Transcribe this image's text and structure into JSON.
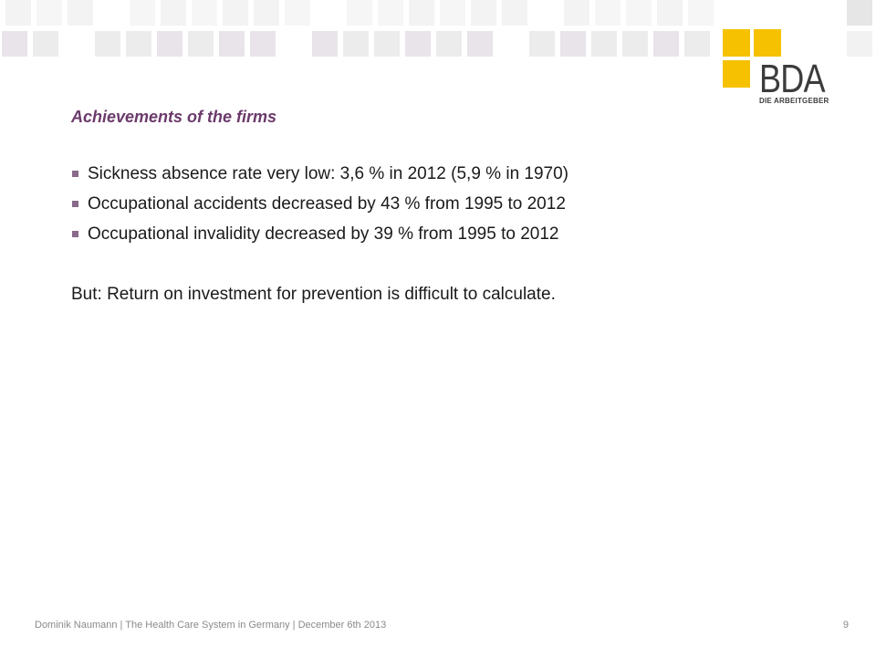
{
  "logo": {
    "letters": "BDA",
    "tagline": "DIE ARBEITGEBER"
  },
  "slide": {
    "title": "Achievements of the firms",
    "bullets": [
      "Sickness absence rate very low: 3,6 % in 2012 (5,9 % in 1970)",
      "Occupational accidents decreased by 43 % from 1995 to 2012",
      "Occupational invalidity decreased by 39 % from 1995 to 2012"
    ],
    "note": "But: Return on investment for prevention is difficult to calculate."
  },
  "footer": {
    "text": "Dominik Naumann | The Health Care System in Germany | December 6th 2013",
    "page_number": "9"
  },
  "colors": {
    "title": "#6b3a6b",
    "logo_yellow": "#f5c100",
    "bullet_marker": "#8a6a8a"
  }
}
